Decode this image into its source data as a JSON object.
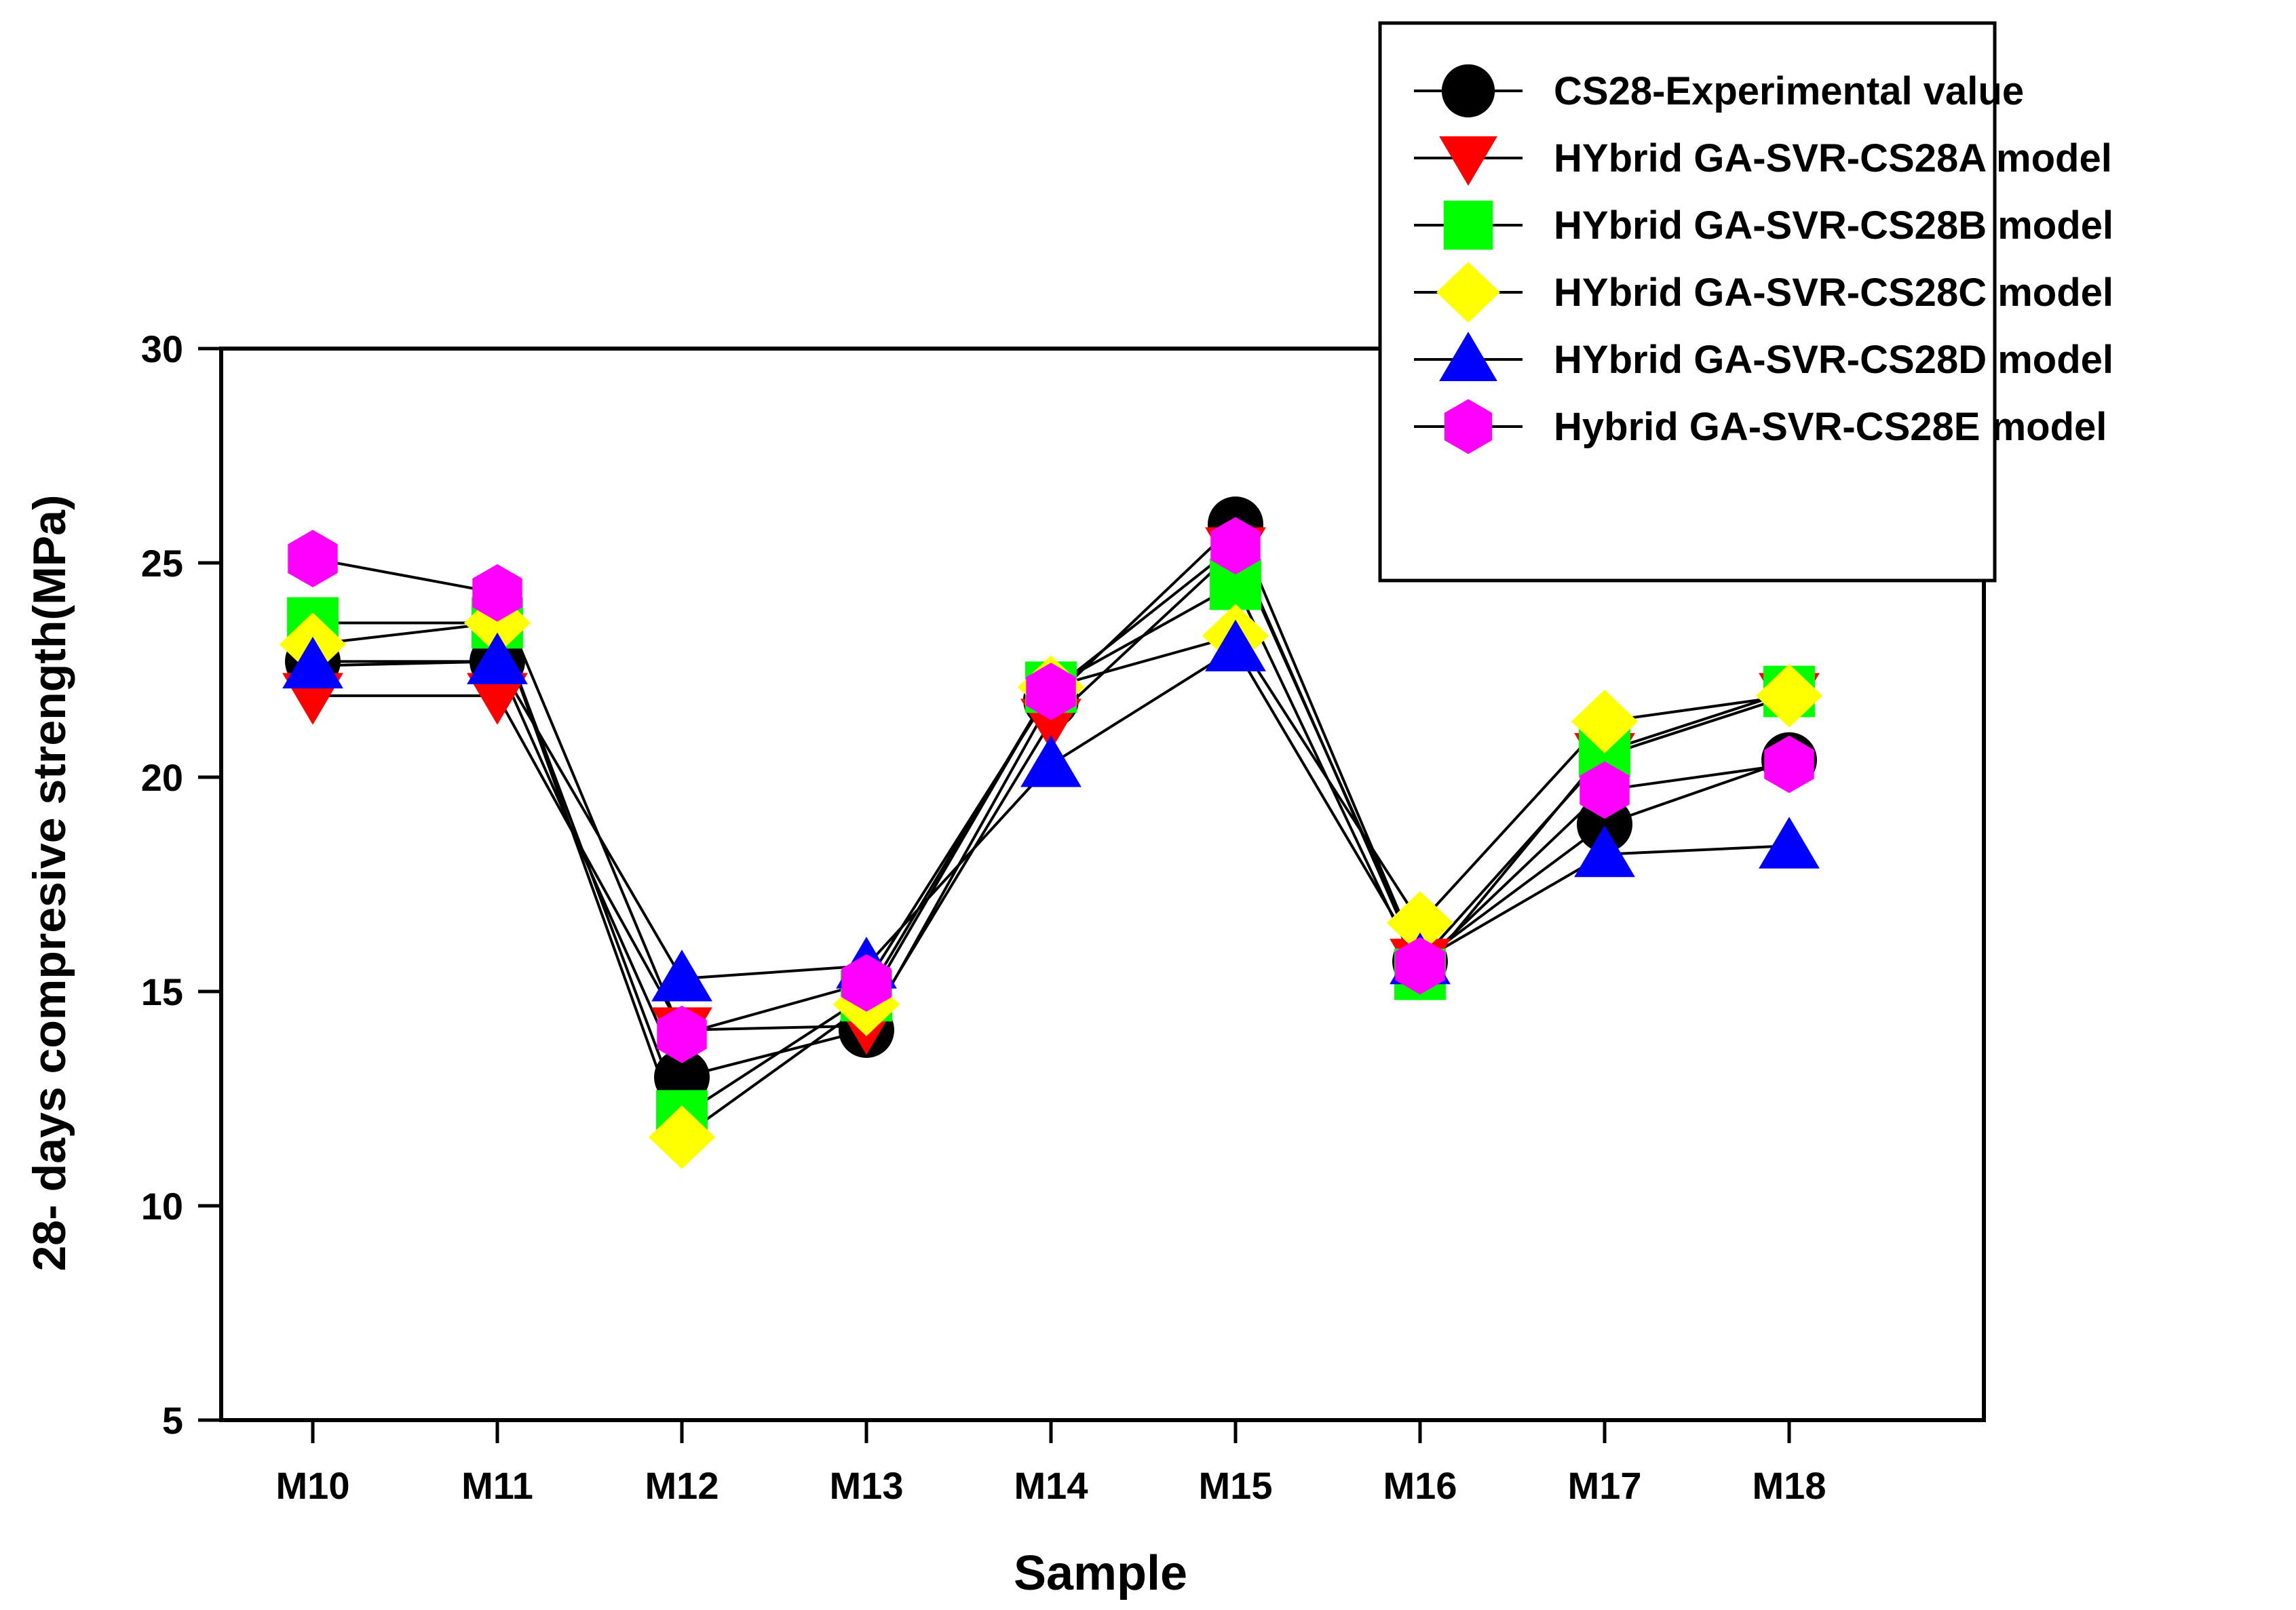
{
  "chart_data": {
    "type": "line",
    "title": "",
    "xlabel": "Sample",
    "ylabel": "28- days compresive strength(MPa)",
    "categories": [
      "M10",
      "M11",
      "M12",
      "M13",
      "M14",
      "M15",
      "M16",
      "M17",
      "M18"
    ],
    "ylim": [
      5,
      30
    ],
    "yticks": [
      5,
      10,
      15,
      20,
      25,
      30
    ],
    "grid": false,
    "legend_position": "top-right",
    "series": [
      {
        "name": "CS28-Experimental value",
        "marker": "circle",
        "color": "#000000",
        "values": [
          22.7,
          22.7,
          13.0,
          14.1,
          21.8,
          25.9,
          15.7,
          18.9,
          20.4
        ]
      },
      {
        "name": "HYbrid GA-SVR-CS28A model",
        "marker": "triangle-down",
        "color": "#ff0000",
        "values": [
          21.9,
          21.9,
          14.1,
          14.2,
          21.3,
          25.3,
          15.7,
          20.5,
          21.9
        ]
      },
      {
        "name": "HYbrid GA-SVR-CS28B model",
        "marker": "square",
        "color": "#00ff00",
        "values": [
          23.6,
          23.6,
          12.1,
          14.9,
          22.1,
          24.5,
          15.4,
          20.6,
          22.0
        ]
      },
      {
        "name": "HYbrid GA-SVR-CS28C model",
        "marker": "diamond",
        "color": "#ffff00",
        "values": [
          23.1,
          23.6,
          11.6,
          14.7,
          22.1,
          23.3,
          16.6,
          21.3,
          21.9
        ]
      },
      {
        "name": "HYbrid GA-SVR-CS28D model",
        "marker": "triangle-up",
        "color": "#0000ff",
        "values": [
          22.6,
          22.7,
          15.3,
          15.6,
          20.3,
          23.0,
          15.7,
          18.2,
          18.4
        ]
      },
      {
        "name": "Hybrid GA-SVR-CS28E model",
        "marker": "hexagon",
        "color": "#ff00ff",
        "values": [
          25.1,
          24.3,
          14.0,
          15.2,
          22.0,
          25.4,
          15.6,
          19.7,
          20.3
        ]
      }
    ]
  }
}
